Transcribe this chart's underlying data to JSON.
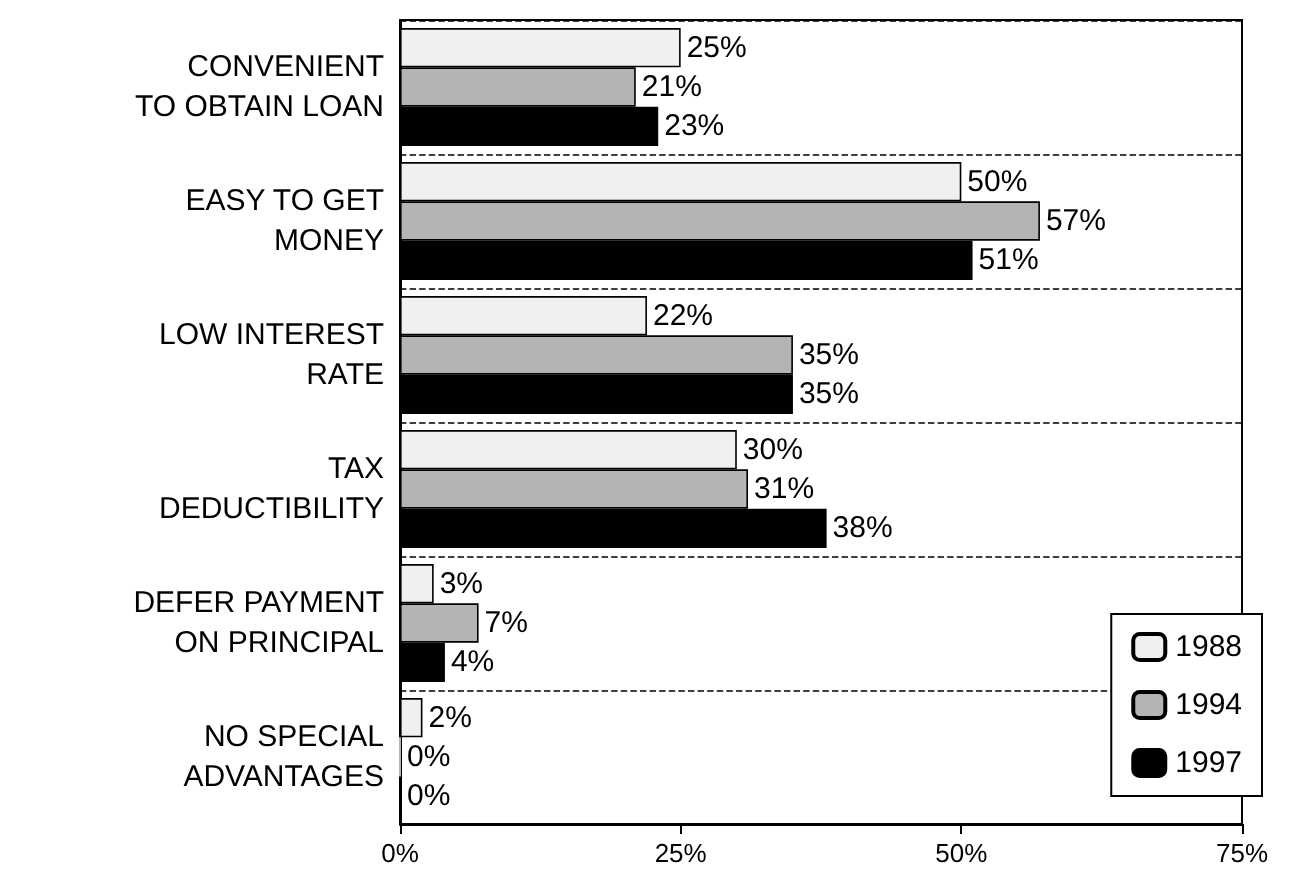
{
  "chart_data": {
    "type": "bar",
    "orientation": "horizontal",
    "categories": [
      "CONVENIENT\nTO OBTAIN LOAN",
      "EASY TO GET\nMONEY",
      "LOW INTEREST\nRATE",
      "TAX\nDEDUCTIBILITY",
      "DEFER PAYMENT\nON PRINCIPAL",
      "NO SPECIAL\nADVANTAGES"
    ],
    "series": [
      {
        "name": "1988",
        "color": "#f0f0f0",
        "values": [
          25,
          50,
          22,
          30,
          3,
          2
        ],
        "value_labels": [
          "25%",
          "50%",
          "22%",
          "30%",
          "3%",
          "2%"
        ]
      },
      {
        "name": "1994",
        "color": "#b4b4b4",
        "values": [
          21,
          57,
          35,
          31,
          7,
          0
        ],
        "value_labels": [
          "21%",
          "57%",
          "35%",
          "31%",
          "7%",
          "0%"
        ]
      },
      {
        "name": "1997",
        "color": "#000000",
        "values": [
          23,
          51,
          35,
          38,
          4,
          0
        ],
        "value_labels": [
          "23%",
          "51%",
          "35%",
          "38%",
          "4%",
          "0%"
        ]
      }
    ],
    "xlim": [
      0,
      75
    ],
    "xticks": [
      {
        "value": 0,
        "label": "0%"
      },
      {
        "value": 25,
        "label": "25%"
      },
      {
        "value": 50,
        "label": "50%"
      },
      {
        "value": 75,
        "label": "75%"
      }
    ],
    "grid": "y",
    "legend": "bottom right"
  }
}
